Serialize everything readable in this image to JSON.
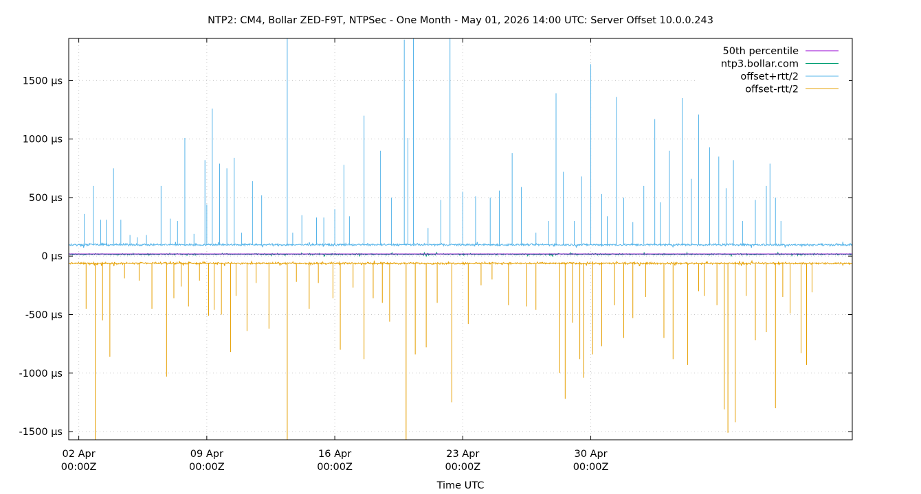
{
  "chart_data": {
    "type": "line",
    "title": "NTP2: CM4, Bollar ZED-F9T, NTPSec - One Month - May 01, 2026 14:00 UTC: Server Offset 10.0.0.243",
    "xlabel": "Time UTC",
    "ylabel": "",
    "x_unit": "days since 02 Apr 00:00Z",
    "xlim": [
      -0.55,
      42.3
    ],
    "ylim": [
      -1570,
      1860
    ],
    "grid": true,
    "legend_position": "top-right",
    "x_ticks": [
      {
        "day": 0,
        "line1": "02 Apr",
        "line2": "00:00Z"
      },
      {
        "day": 7,
        "line1": "09 Apr",
        "line2": "00:00Z"
      },
      {
        "day": 14,
        "line1": "16 Apr",
        "line2": "00:00Z"
      },
      {
        "day": 21,
        "line1": "23 Apr",
        "line2": "00:00Z"
      },
      {
        "day": 28,
        "line1": "30 Apr",
        "line2": "00:00Z"
      }
    ],
    "y_ticks": [
      {
        "value": 1500,
        "label": "1500 µs"
      },
      {
        "value": 1000,
        "label": "1000 µs"
      },
      {
        "value": 500,
        "label": "500 µs"
      },
      {
        "value": 0,
        "label": "0 µs"
      },
      {
        "value": -500,
        "label": "-500 µs"
      },
      {
        "value": -1000,
        "label": "-1000 µs"
      },
      {
        "value": -1500,
        "label": "-1500 µs"
      }
    ],
    "series": [
      {
        "name": "50th percentile",
        "color": "#9400d3",
        "type": "hline",
        "value": 18
      },
      {
        "name": "ntp3.bollar.com",
        "color": "#009e73",
        "baseline": 15,
        "noise": 9
      },
      {
        "name": "offset+rtt/2",
        "color": "#56b4e9",
        "baseline": 97,
        "noise": 13,
        "spikes": [
          [
            0.3,
            360
          ],
          [
            0.8,
            600
          ],
          [
            1.2,
            310
          ],
          [
            1.5,
            310
          ],
          [
            1.9,
            750
          ],
          [
            2.3,
            310
          ],
          [
            2.8,
            180
          ],
          [
            3.2,
            160
          ],
          [
            3.7,
            180
          ],
          [
            4.5,
            600
          ],
          [
            5.0,
            320
          ],
          [
            5.4,
            300
          ],
          [
            5.8,
            1010
          ],
          [
            6.3,
            190
          ],
          [
            6.9,
            820
          ],
          [
            7.0,
            440
          ],
          [
            7.3,
            1260
          ],
          [
            7.7,
            790
          ],
          [
            8.1,
            750
          ],
          [
            8.5,
            840
          ],
          [
            8.9,
            200
          ],
          [
            9.5,
            640
          ],
          [
            10.0,
            520
          ],
          [
            11.4,
            1860
          ],
          [
            11.7,
            200
          ],
          [
            12.2,
            350
          ],
          [
            13.0,
            330
          ],
          [
            13.4,
            330
          ],
          [
            14.0,
            400
          ],
          [
            14.5,
            780
          ],
          [
            14.8,
            340
          ],
          [
            15.6,
            1200
          ],
          [
            16.5,
            900
          ],
          [
            17.1,
            500
          ],
          [
            17.8,
            1850
          ],
          [
            18.0,
            1010
          ],
          [
            18.3,
            1860
          ],
          [
            19.1,
            240
          ],
          [
            19.8,
            480
          ],
          [
            20.3,
            1860
          ],
          [
            21.0,
            550
          ],
          [
            21.7,
            510
          ],
          [
            22.5,
            500
          ],
          [
            23.0,
            560
          ],
          [
            23.7,
            880
          ],
          [
            24.2,
            590
          ],
          [
            25.0,
            200
          ],
          [
            25.7,
            300
          ],
          [
            26.1,
            1390
          ],
          [
            26.5,
            720
          ],
          [
            27.1,
            300
          ],
          [
            27.5,
            680
          ],
          [
            28.0,
            1640
          ],
          [
            28.6,
            530
          ],
          [
            28.9,
            340
          ],
          [
            29.4,
            1360
          ],
          [
            29.8,
            500
          ],
          [
            30.3,
            290
          ],
          [
            30.9,
            600
          ],
          [
            31.5,
            1170
          ],
          [
            31.8,
            460
          ],
          [
            32.3,
            900
          ],
          [
            33.0,
            1350
          ],
          [
            33.5,
            660
          ],
          [
            33.9,
            1210
          ],
          [
            34.5,
            930
          ],
          [
            35.0,
            850
          ],
          [
            35.4,
            580
          ],
          [
            35.8,
            820
          ],
          [
            36.3,
            300
          ],
          [
            37.0,
            480
          ],
          [
            37.6,
            600
          ],
          [
            37.8,
            790
          ],
          [
            38.1,
            500
          ],
          [
            38.4,
            300
          ]
        ]
      },
      {
        "name": "offset-rtt/2",
        "color": "#e69f00",
        "baseline": -62,
        "noise": 12,
        "spikes": [
          [
            0.4,
            -450
          ],
          [
            0.9,
            -1570
          ],
          [
            1.3,
            -550
          ],
          [
            1.7,
            -860
          ],
          [
            2.5,
            -190
          ],
          [
            3.3,
            -210
          ],
          [
            4.0,
            -450
          ],
          [
            4.8,
            -1030
          ],
          [
            5.2,
            -360
          ],
          [
            5.6,
            -260
          ],
          [
            6.0,
            -430
          ],
          [
            6.6,
            -210
          ],
          [
            7.1,
            -510
          ],
          [
            7.4,
            -460
          ],
          [
            7.8,
            -500
          ],
          [
            8.3,
            -820
          ],
          [
            8.6,
            -340
          ],
          [
            9.2,
            -640
          ],
          [
            9.7,
            -230
          ],
          [
            10.4,
            -620
          ],
          [
            11.4,
            -1570
          ],
          [
            11.9,
            -220
          ],
          [
            12.6,
            -450
          ],
          [
            13.1,
            -230
          ],
          [
            13.9,
            -360
          ],
          [
            14.3,
            -800
          ],
          [
            15.0,
            -270
          ],
          [
            15.6,
            -880
          ],
          [
            16.1,
            -360
          ],
          [
            16.6,
            -400
          ],
          [
            17.0,
            -560
          ],
          [
            17.9,
            -1570
          ],
          [
            18.4,
            -840
          ],
          [
            19.0,
            -780
          ],
          [
            19.6,
            -400
          ],
          [
            20.4,
            -1250
          ],
          [
            21.3,
            -580
          ],
          [
            22.0,
            -250
          ],
          [
            22.6,
            -200
          ],
          [
            23.5,
            -420
          ],
          [
            24.5,
            -430
          ],
          [
            25.0,
            -460
          ],
          [
            26.3,
            -1000
          ],
          [
            26.6,
            -1220
          ],
          [
            27.0,
            -570
          ],
          [
            27.4,
            -880
          ],
          [
            27.6,
            -1040
          ],
          [
            28.1,
            -840
          ],
          [
            28.6,
            -770
          ],
          [
            29.3,
            -420
          ],
          [
            29.8,
            -700
          ],
          [
            30.3,
            -530
          ],
          [
            31.0,
            -350
          ],
          [
            32.0,
            -700
          ],
          [
            32.5,
            -880
          ],
          [
            33.3,
            -930
          ],
          [
            33.9,
            -300
          ],
          [
            34.2,
            -340
          ],
          [
            34.9,
            -420
          ],
          [
            35.3,
            -1310
          ],
          [
            35.5,
            -1510
          ],
          [
            35.9,
            -1420
          ],
          [
            36.5,
            -340
          ],
          [
            37.0,
            -720
          ],
          [
            37.6,
            -650
          ],
          [
            38.1,
            -1300
          ],
          [
            38.5,
            -350
          ],
          [
            38.9,
            -490
          ],
          [
            39.5,
            -830
          ],
          [
            39.8,
            -930
          ],
          [
            40.1,
            -310
          ]
        ]
      }
    ]
  }
}
